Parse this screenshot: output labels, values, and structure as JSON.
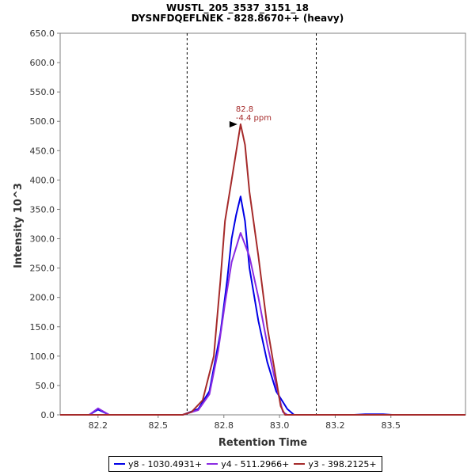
{
  "chart_data": {
    "type": "line",
    "title": "WUSTL_205_3537_3151_18",
    "subtitle": "DYSNFDQEFLNEK - 828.8670++ (heavy)",
    "xlabel": "Retention Time",
    "ylabel": "Intensity 10^3",
    "xlim": [
      82.03,
      83.85
    ],
    "ylim": [
      0,
      650
    ],
    "x_ticks": [
      "82.2",
      "82.5",
      "82.8",
      "83.0",
      "83.2",
      "83.5"
    ],
    "x_tick_values": [
      82.2,
      82.47,
      82.765,
      83.015,
      83.265,
      83.515
    ],
    "y_ticks": [
      "0.0",
      "50.0",
      "100.0",
      "150.0",
      "200.0",
      "250.0",
      "300.0",
      "350.0",
      "400.0",
      "450.0",
      "500.0",
      "550.0",
      "600.0",
      "650.0"
    ],
    "y_tick_values": [
      0,
      50,
      100,
      150,
      200,
      250,
      300,
      350,
      400,
      450,
      500,
      550,
      600,
      650
    ],
    "vlines": [
      82.6,
      83.18
    ],
    "grid": false,
    "legend_position": "bottom",
    "series": [
      {
        "name": "y8 - 1030.4931+",
        "color": "#0000e6",
        "points": [
          [
            82.03,
            0
          ],
          [
            82.16,
            0
          ],
          [
            82.2,
            9
          ],
          [
            82.25,
            0
          ],
          [
            82.58,
            0
          ],
          [
            82.65,
            10
          ],
          [
            82.7,
            40
          ],
          [
            82.75,
            140
          ],
          [
            82.78,
            230
          ],
          [
            82.8,
            300
          ],
          [
            82.82,
            340
          ],
          [
            82.84,
            372
          ],
          [
            82.86,
            330
          ],
          [
            82.88,
            250
          ],
          [
            82.92,
            160
          ],
          [
            82.96,
            90
          ],
          [
            83.0,
            40
          ],
          [
            83.05,
            10
          ],
          [
            83.08,
            0
          ],
          [
            83.35,
            0
          ],
          [
            83.4,
            1
          ],
          [
            83.48,
            1
          ],
          [
            83.52,
            0
          ],
          [
            83.85,
            0
          ]
        ]
      },
      {
        "name": "y4 - 511.2966+",
        "color": "#8a2be2",
        "points": [
          [
            82.03,
            0
          ],
          [
            82.16,
            0
          ],
          [
            82.2,
            11
          ],
          [
            82.25,
            0
          ],
          [
            82.58,
            0
          ],
          [
            82.65,
            8
          ],
          [
            82.7,
            35
          ],
          [
            82.74,
            110
          ],
          [
            82.77,
            190
          ],
          [
            82.8,
            260
          ],
          [
            82.84,
            310
          ],
          [
            82.88,
            270
          ],
          [
            82.92,
            200
          ],
          [
            82.96,
            120
          ],
          [
            83.0,
            50
          ],
          [
            83.03,
            5
          ],
          [
            83.05,
            0
          ],
          [
            83.85,
            0
          ]
        ]
      },
      {
        "name": "y3 - 398.2125+",
        "color": "#a52a2a",
        "points": [
          [
            82.03,
            0
          ],
          [
            82.58,
            0
          ],
          [
            82.62,
            5
          ],
          [
            82.67,
            25
          ],
          [
            82.72,
            100
          ],
          [
            82.75,
            230
          ],
          [
            82.77,
            330
          ],
          [
            82.8,
            400
          ],
          [
            82.84,
            495
          ],
          [
            82.86,
            460
          ],
          [
            82.88,
            380
          ],
          [
            82.92,
            270
          ],
          [
            82.96,
            150
          ],
          [
            83.0,
            60
          ],
          [
            83.02,
            15
          ],
          [
            83.04,
            0
          ],
          [
            83.85,
            0
          ]
        ]
      }
    ],
    "annotations": [
      {
        "text": "82.8",
        "color": "#a52a2a"
      },
      {
        "text": "-4.4 ppm",
        "color": "#a52a2a"
      }
    ],
    "annotation_point": [
      82.84,
      495
    ]
  }
}
